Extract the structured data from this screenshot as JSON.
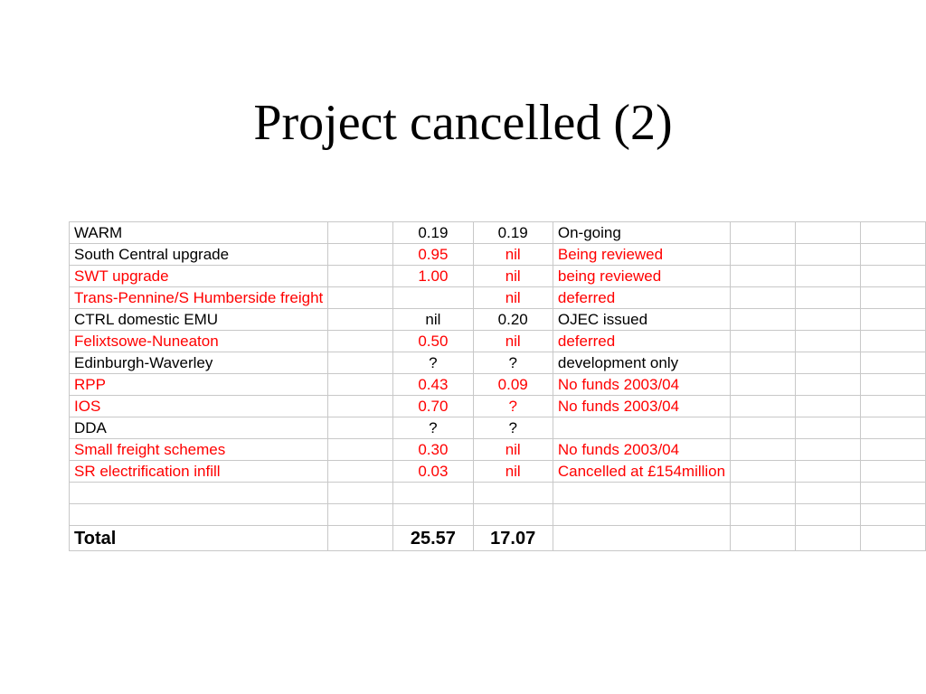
{
  "title": "Project cancelled (2)",
  "colors": {
    "highlight": "#ff0000",
    "text": "#000000",
    "gridline": "#c8c8c8"
  },
  "table": {
    "rows": [
      {
        "name": "WARM",
        "span": 1,
        "v1": "0.19",
        "v2": "0.19",
        "status": "On-going",
        "red": false
      },
      {
        "name": "South Central upgrade",
        "span": 2,
        "v1": "0.95",
        "v2": "nil",
        "status": "Being reviewed",
        "red": true,
        "name_red": false
      },
      {
        "name": "SWT upgrade",
        "span": 1,
        "v1": "1.00",
        "v2": "nil",
        "status": "being reviewed",
        "red": true
      },
      {
        "name": "Trans-Pennine/S Humberside freight",
        "span": 3,
        "v1": "",
        "v2": "nil",
        "status": "deferred",
        "red": true
      },
      {
        "name": "CTRL domestic EMU",
        "span": 2,
        "v1": "nil",
        "v2": "0.20",
        "status": "OJEC issued",
        "red": false
      },
      {
        "name": "Felixtsowe-Nuneaton",
        "span": 2,
        "v1": "0.50",
        "v2": "nil",
        "status": "deferred",
        "red": true
      },
      {
        "name": "Edinburgh-Waverley",
        "span": 2,
        "v1": "?",
        "v2": "?",
        "status": "development only",
        "red": false
      },
      {
        "name": "RPP",
        "span": 1,
        "v1": "0.43",
        "v2": "0.09",
        "status": "No funds 2003/04",
        "red": true
      },
      {
        "name": "IOS",
        "span": 1,
        "v1": "0.70",
        "v2": "?",
        "status": "No funds 2003/04",
        "red": true
      },
      {
        "name": "DDA",
        "span": 1,
        "v1": "?",
        "v2": "?",
        "status": "",
        "red": false
      },
      {
        "name": "Small freight schemes",
        "span": 2,
        "v1": "0.30",
        "v2": "nil",
        "status": "No funds 2003/04",
        "red": true
      },
      {
        "name": "SR   electrification infill",
        "span": 2,
        "v1": "0.03",
        "v2": "nil",
        "status": "Cancelled at £154million",
        "red": true
      },
      {
        "name": "",
        "span": 1,
        "v1": "",
        "v2": "",
        "status": "",
        "red": false
      },
      {
        "name": "",
        "span": 1,
        "v1": "",
        "v2": "",
        "status": "",
        "red": false
      }
    ],
    "total": {
      "label": "Total",
      "v1": "25.57",
      "v2": "17.07"
    }
  }
}
